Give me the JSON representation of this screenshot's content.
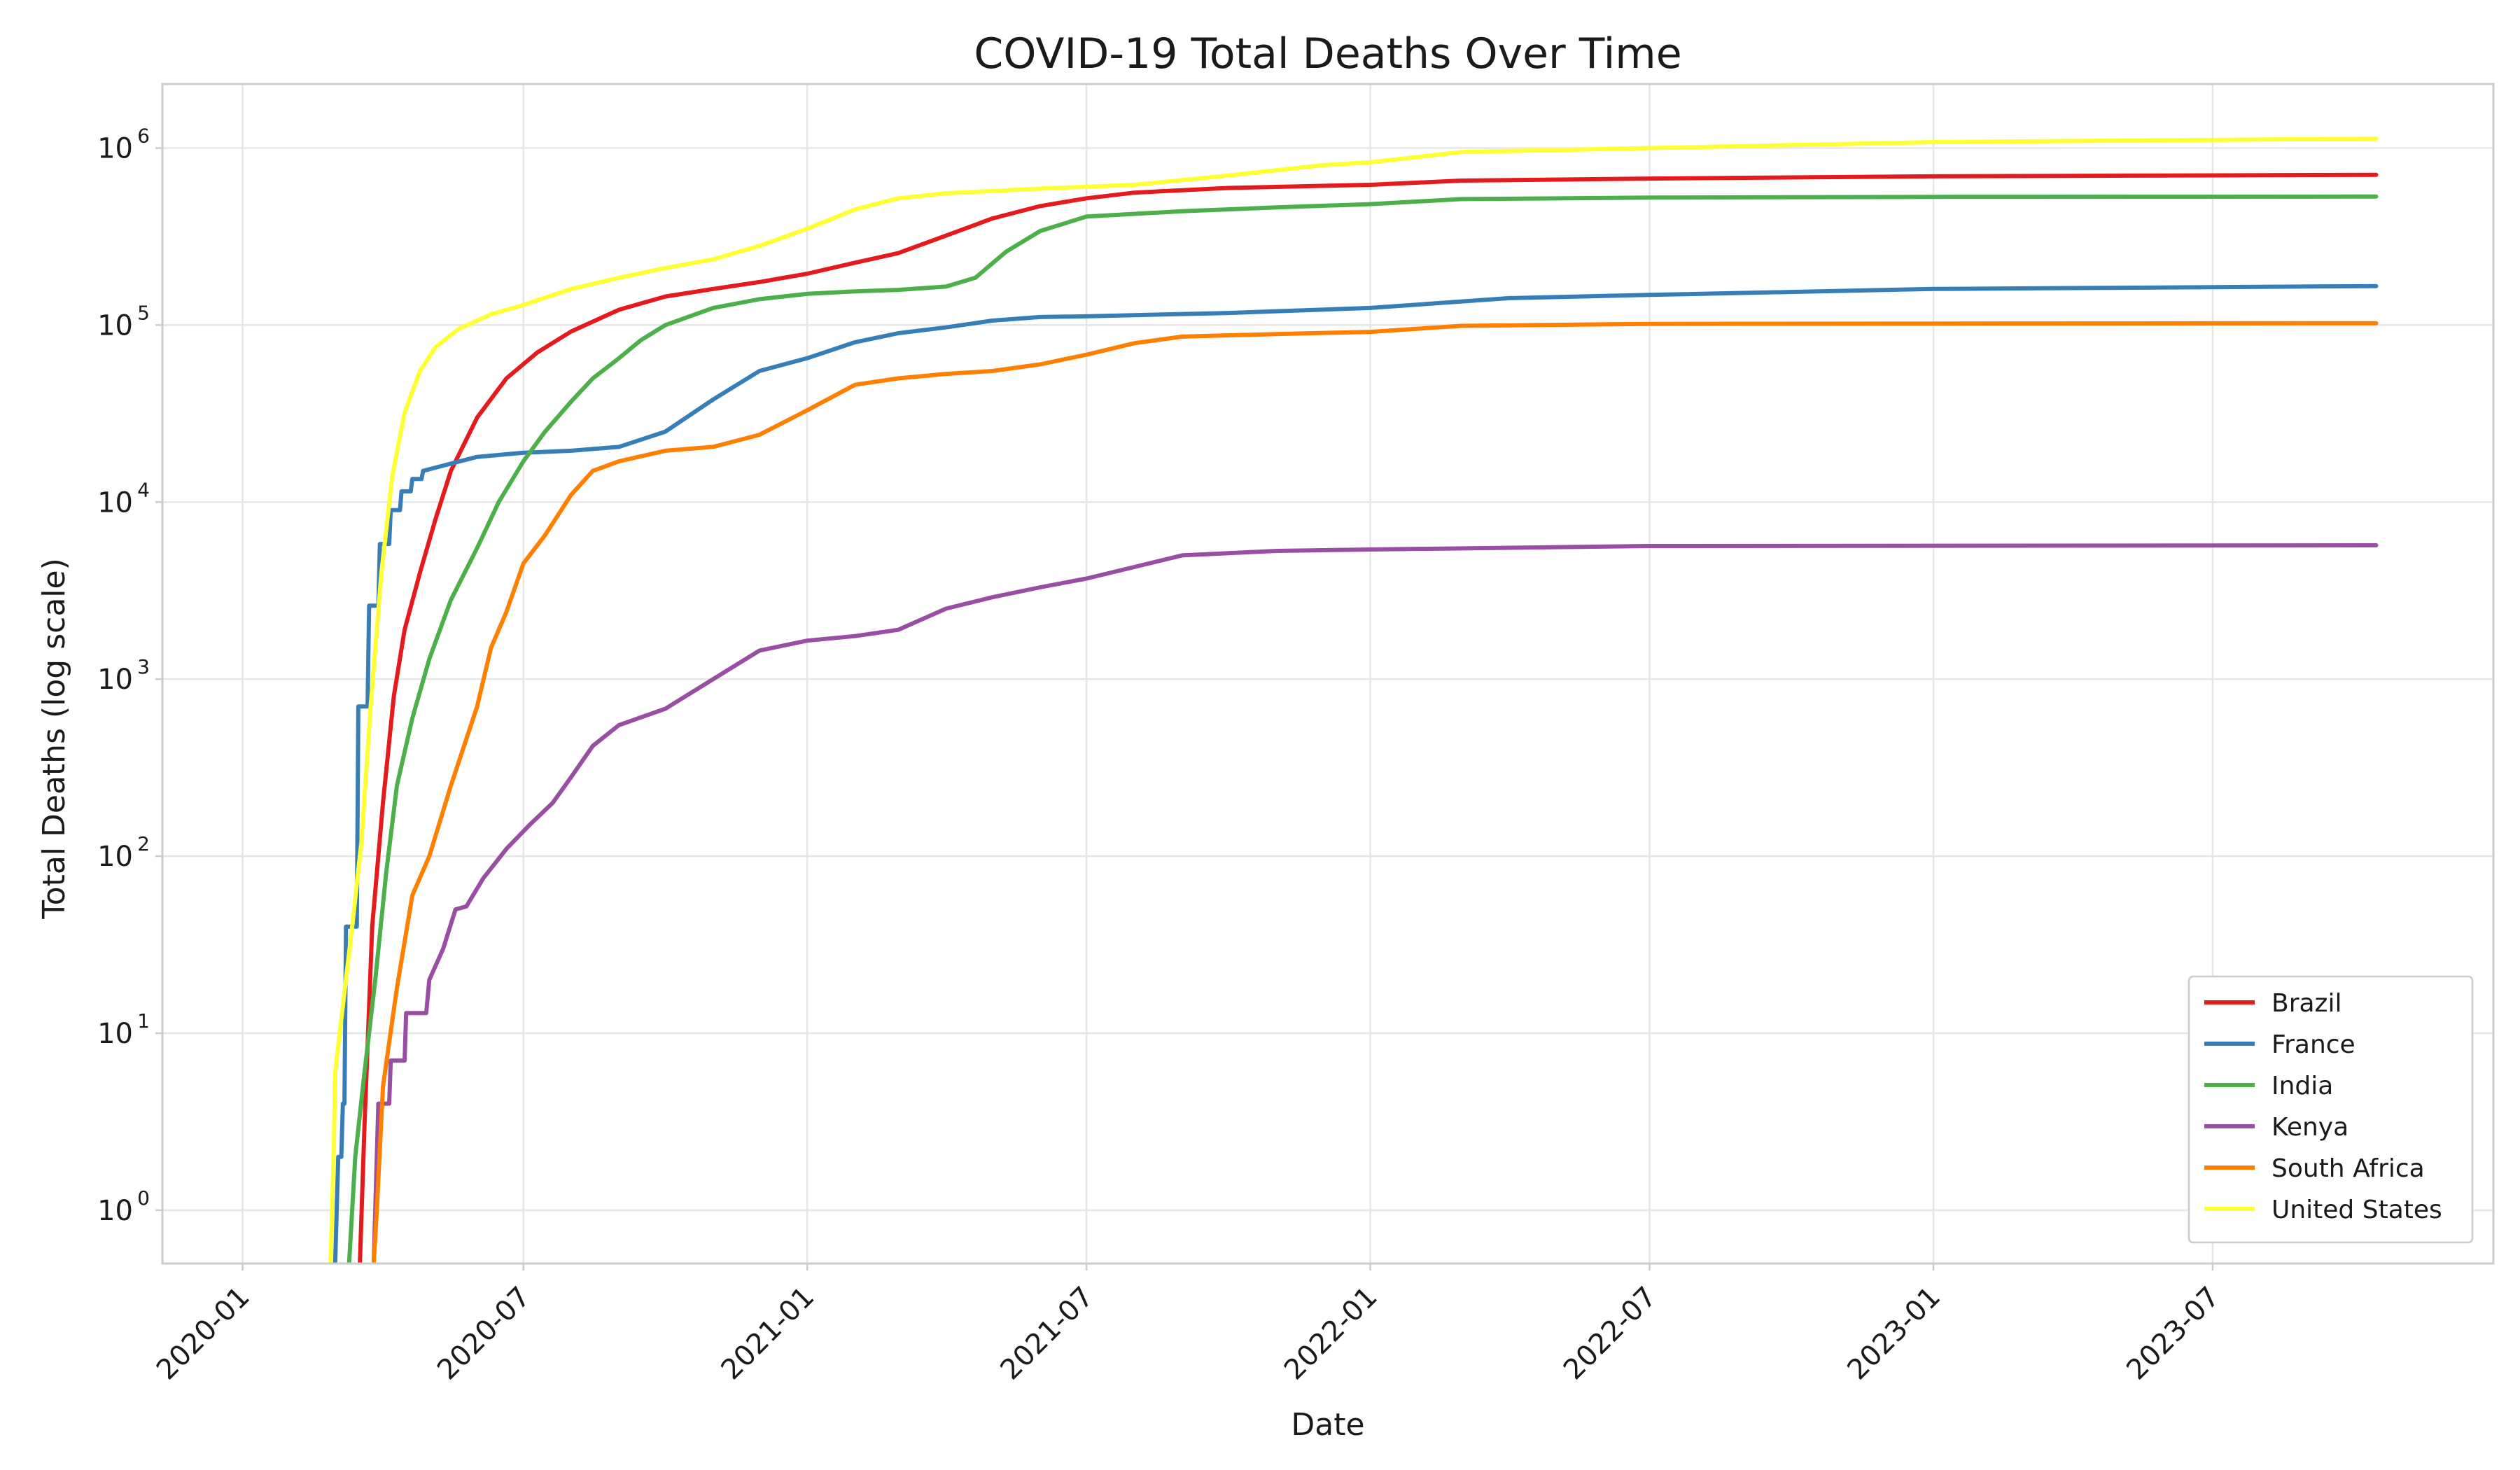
{
  "chart_data": {
    "type": "line",
    "title": "COVID-19 Total Deaths Over Time",
    "xlabel": "Date",
    "ylabel": "Total Deaths (log scale)",
    "yscale": "log",
    "xlim": [
      "2019-11-10",
      "2023-12-30"
    ],
    "ylim": [
      0.5,
      2300000
    ],
    "grid": true,
    "legend": "bottom-right",
    "x_ticks": [
      "2020-01",
      "2020-07",
      "2021-01",
      "2021-07",
      "2022-01",
      "2022-07",
      "2023-01",
      "2023-07"
    ],
    "y_ticks": [
      {
        "value": 1,
        "base": "10",
        "exp": "0"
      },
      {
        "value": 10,
        "base": "10",
        "exp": "1"
      },
      {
        "value": 100,
        "base": "10",
        "exp": "2"
      },
      {
        "value": 1000,
        "base": "10",
        "exp": "3"
      },
      {
        "value": 10000,
        "base": "10",
        "exp": "4"
      },
      {
        "value": 100000,
        "base": "10",
        "exp": "5"
      },
      {
        "value": 1000000,
        "base": "10",
        "exp": "6"
      }
    ],
    "series": [
      {
        "name": "Brazil",
        "color": "#e41a1c",
        "points": [
          [
            "2020-03-17",
            0.5
          ],
          [
            "2020-03-20",
            3
          ],
          [
            "2020-03-25",
            40
          ],
          [
            "2020-04-01",
            200
          ],
          [
            "2020-04-08",
            800
          ],
          [
            "2020-04-15",
            1900
          ],
          [
            "2020-04-25",
            4000
          ],
          [
            "2020-05-05",
            8000
          ],
          [
            "2020-05-15",
            15000
          ],
          [
            "2020-06-01",
            30000
          ],
          [
            "2020-06-20",
            50000
          ],
          [
            "2020-07-10",
            70000
          ],
          [
            "2020-08-01",
            92000
          ],
          [
            "2020-09-01",
            122000
          ],
          [
            "2020-10-01",
            145000
          ],
          [
            "2020-11-01",
            160000
          ],
          [
            "2020-12-01",
            175000
          ],
          [
            "2021-01-01",
            195000
          ],
          [
            "2021-02-01",
            225000
          ],
          [
            "2021-03-01",
            255000
          ],
          [
            "2021-04-01",
            320000
          ],
          [
            "2021-05-01",
            400000
          ],
          [
            "2021-06-01",
            470000
          ],
          [
            "2021-07-01",
            520000
          ],
          [
            "2021-08-01",
            560000
          ],
          [
            "2021-10-01",
            595000
          ],
          [
            "2022-01-01",
            620000
          ],
          [
            "2022-03-01",
            655000
          ],
          [
            "2022-07-01",
            672000
          ],
          [
            "2023-01-01",
            692000
          ],
          [
            "2023-10-15",
            706000
          ]
        ]
      },
      {
        "name": "France",
        "color": "#377eb8",
        "points": [
          [
            "2020-03-01",
            0.5
          ],
          [
            "2020-03-03",
            2
          ],
          [
            "2020-03-05",
            2
          ],
          [
            "2020-03-06",
            4
          ],
          [
            "2020-03-07",
            4
          ],
          [
            "2020-03-08",
            40
          ],
          [
            "2020-03-15",
            40
          ],
          [
            "2020-03-16",
            700
          ],
          [
            "2020-03-22",
            700
          ],
          [
            "2020-03-23",
            2600
          ],
          [
            "2020-03-29",
            2600
          ],
          [
            "2020-03-30",
            5800
          ],
          [
            "2020-04-05",
            5800
          ],
          [
            "2020-04-06",
            9000
          ],
          [
            "2020-04-12",
            9000
          ],
          [
            "2020-04-13",
            11500
          ],
          [
            "2020-04-19",
            11500
          ],
          [
            "2020-04-20",
            13500
          ],
          [
            "2020-04-26",
            13500
          ],
          [
            "2020-04-27",
            15000
          ],
          [
            "2020-05-15",
            16500
          ],
          [
            "2020-06-01",
            18000
          ],
          [
            "2020-07-01",
            19000
          ],
          [
            "2020-08-01",
            19500
          ],
          [
            "2020-09-01",
            20500
          ],
          [
            "2020-10-01",
            25000
          ],
          [
            "2020-11-01",
            38000
          ],
          [
            "2020-12-01",
            55000
          ],
          [
            "2021-01-01",
            65000
          ],
          [
            "2021-02-01",
            80000
          ],
          [
            "2021-03-01",
            90000
          ],
          [
            "2021-04-01",
            97000
          ],
          [
            "2021-05-01",
            106000
          ],
          [
            "2021-06-01",
            111000
          ],
          [
            "2021-07-01",
            112000
          ],
          [
            "2021-10-01",
            117000
          ],
          [
            "2022-01-01",
            125000
          ],
          [
            "2022-04-01",
            142000
          ],
          [
            "2022-07-01",
            148000
          ],
          [
            "2023-01-01",
            160000
          ],
          [
            "2023-10-15",
            166000
          ]
        ]
      },
      {
        "name": "India",
        "color": "#4daf4a",
        "points": [
          [
            "2020-03-10",
            0.5
          ],
          [
            "2020-03-14",
            2
          ],
          [
            "2020-03-20",
            6
          ],
          [
            "2020-03-27",
            20
          ],
          [
            "2020-04-03",
            80
          ],
          [
            "2020-04-10",
            250
          ],
          [
            "2020-04-20",
            600
          ],
          [
            "2020-05-01",
            1300
          ],
          [
            "2020-05-15",
            2800
          ],
          [
            "2020-06-01",
            5500
          ],
          [
            "2020-06-15",
            10000
          ],
          [
            "2020-07-01",
            17000
          ],
          [
            "2020-07-15",
            25000
          ],
          [
            "2020-08-01",
            37000
          ],
          [
            "2020-08-15",
            50000
          ],
          [
            "2020-09-01",
            65000
          ],
          [
            "2020-09-15",
            82000
          ],
          [
            "2020-10-01",
            100000
          ],
          [
            "2020-11-01",
            125000
          ],
          [
            "2020-12-01",
            140000
          ],
          [
            "2021-01-01",
            150000
          ],
          [
            "2021-02-01",
            155000
          ],
          [
            "2021-03-01",
            158000
          ],
          [
            "2021-04-01",
            165000
          ],
          [
            "2021-04-20",
            185000
          ],
          [
            "2021-05-10",
            260000
          ],
          [
            "2021-06-01",
            340000
          ],
          [
            "2021-07-01",
            410000
          ],
          [
            "2021-09-01",
            440000
          ],
          [
            "2021-11-01",
            462000
          ],
          [
            "2022-01-01",
            482000
          ],
          [
            "2022-03-01",
            515000
          ],
          [
            "2022-07-01",
            525000
          ],
          [
            "2023-01-01",
            530000
          ],
          [
            "2023-10-15",
            532000
          ]
        ]
      },
      {
        "name": "Kenya",
        "color": "#984ea3",
        "points": [
          [
            "2020-03-26",
            0.5
          ],
          [
            "2020-03-27",
            1
          ],
          [
            "2020-03-29",
            4
          ],
          [
            "2020-04-05",
            4
          ],
          [
            "2020-04-06",
            7
          ],
          [
            "2020-04-15",
            7
          ],
          [
            "2020-04-16",
            13
          ],
          [
            "2020-04-29",
            13
          ],
          [
            "2020-05-01",
            20
          ],
          [
            "2020-05-10",
            30
          ],
          [
            "2020-05-18",
            50
          ],
          [
            "2020-05-25",
            52
          ],
          [
            "2020-06-05",
            75
          ],
          [
            "2020-06-20",
            110
          ],
          [
            "2020-07-05",
            150
          ],
          [
            "2020-07-20",
            200
          ],
          [
            "2020-08-01",
            280
          ],
          [
            "2020-08-15",
            420
          ],
          [
            "2020-09-01",
            550
          ],
          [
            "2020-10-01",
            680
          ],
          [
            "2020-11-01",
            1000
          ],
          [
            "2020-12-01",
            1450
          ],
          [
            "2021-01-01",
            1650
          ],
          [
            "2021-02-01",
            1750
          ],
          [
            "2021-03-01",
            1900
          ],
          [
            "2021-04-01",
            2500
          ],
          [
            "2021-05-01",
            2900
          ],
          [
            "2021-06-01",
            3300
          ],
          [
            "2021-07-01",
            3700
          ],
          [
            "2021-08-01",
            4300
          ],
          [
            "2021-09-01",
            5000
          ],
          [
            "2021-11-01",
            5300
          ],
          [
            "2022-01-01",
            5400
          ],
          [
            "2022-07-01",
            5650
          ],
          [
            "2023-10-15",
            5700
          ]
        ]
      },
      {
        "name": "South Africa",
        "color": "#ff7f00",
        "points": [
          [
            "2020-03-26",
            0.5
          ],
          [
            "2020-03-28",
            1
          ],
          [
            "2020-04-01",
            5
          ],
          [
            "2020-04-10",
            18
          ],
          [
            "2020-04-20",
            60
          ],
          [
            "2020-05-01",
            100
          ],
          [
            "2020-05-15",
            250
          ],
          [
            "2020-06-01",
            700
          ],
          [
            "2020-06-10",
            1500
          ],
          [
            "2020-06-20",
            2400
          ],
          [
            "2020-07-01",
            4500
          ],
          [
            "2020-07-15",
            6500
          ],
          [
            "2020-08-01",
            11000
          ],
          [
            "2020-08-15",
            15000
          ],
          [
            "2020-09-01",
            17000
          ],
          [
            "2020-10-01",
            19500
          ],
          [
            "2020-11-01",
            20500
          ],
          [
            "2020-12-01",
            24000
          ],
          [
            "2021-01-01",
            33000
          ],
          [
            "2021-02-01",
            46000
          ],
          [
            "2021-03-01",
            50000
          ],
          [
            "2021-04-01",
            53000
          ],
          [
            "2021-05-01",
            55000
          ],
          [
            "2021-06-01",
            60000
          ],
          [
            "2021-07-01",
            68000
          ],
          [
            "2021-08-01",
            79000
          ],
          [
            "2021-09-01",
            86000
          ],
          [
            "2021-11-01",
            89000
          ],
          [
            "2022-01-01",
            91500
          ],
          [
            "2022-03-01",
            99000
          ],
          [
            "2022-07-01",
            101500
          ],
          [
            "2023-10-15",
            102500
          ]
        ]
      },
      {
        "name": "United States",
        "color": "#ffff33",
        "points": [
          [
            "2020-02-27",
            0.5
          ],
          [
            "2020-02-29",
            2
          ],
          [
            "2020-03-01",
            6
          ],
          [
            "2020-03-05",
            12
          ],
          [
            "2020-03-12",
            40
          ],
          [
            "2020-03-18",
            120
          ],
          [
            "2020-03-24",
            700
          ],
          [
            "2020-03-31",
            4000
          ],
          [
            "2020-04-07",
            14000
          ],
          [
            "2020-04-15",
            32000
          ],
          [
            "2020-04-25",
            55000
          ],
          [
            "2020-05-05",
            75000
          ],
          [
            "2020-05-20",
            95000
          ],
          [
            "2020-06-10",
            115000
          ],
          [
            "2020-07-01",
            130000
          ],
          [
            "2020-08-01",
            160000
          ],
          [
            "2020-09-01",
            185000
          ],
          [
            "2020-10-01",
            210000
          ],
          [
            "2020-11-01",
            235000
          ],
          [
            "2020-12-01",
            280000
          ],
          [
            "2021-01-01",
            350000
          ],
          [
            "2021-02-01",
            450000
          ],
          [
            "2021-03-01",
            520000
          ],
          [
            "2021-04-01",
            555000
          ],
          [
            "2021-06-01",
            590000
          ],
          [
            "2021-08-01",
            620000
          ],
          [
            "2021-10-01",
            700000
          ],
          [
            "2021-12-01",
            800000
          ],
          [
            "2022-01-01",
            830000
          ],
          [
            "2022-03-01",
            950000
          ],
          [
            "2022-07-01",
            1000000
          ],
          [
            "2023-01-01",
            1080000
          ],
          [
            "2023-10-15",
            1130000
          ]
        ]
      }
    ]
  }
}
